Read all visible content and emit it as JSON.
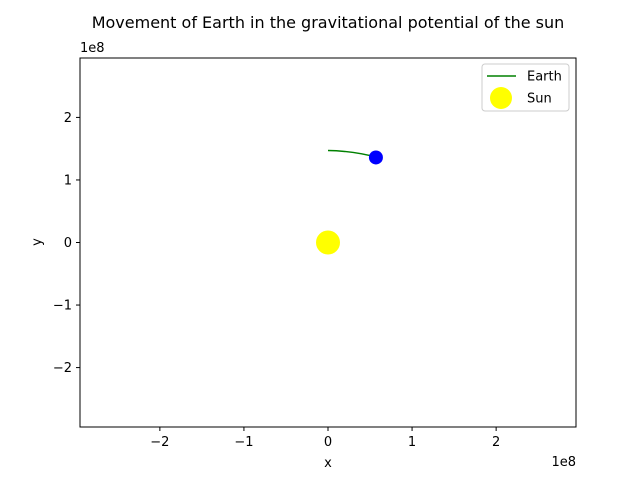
{
  "chart_data": {
    "type": "line",
    "title": "Movement of Earth in the gravitational potential of the sun",
    "xlabel": "x",
    "ylabel": "y",
    "x_offset_label": "1e8",
    "y_offset_label": "1e8",
    "xlim": [
      -2.95,
      2.95
    ],
    "ylim": [
      -2.95,
      2.95
    ],
    "xticks": [
      -2,
      -1,
      0,
      1,
      2
    ],
    "yticks": [
      -2,
      -1,
      0,
      1,
      2
    ],
    "xtick_labels": [
      "−2",
      "−1",
      "0",
      "1",
      "2"
    ],
    "ytick_labels": [
      "−2",
      "−1",
      "0",
      "1",
      "2"
    ],
    "grid": false,
    "legend_position": "top-right",
    "series": [
      {
        "name": "Earth",
        "kind": "line",
        "color": "#008000",
        "x": [
          0.0,
          0.1,
          0.2,
          0.3,
          0.4,
          0.5,
          0.57
        ],
        "y": [
          1.47,
          1.466,
          1.456,
          1.44,
          1.418,
          1.39,
          1.36
        ]
      },
      {
        "name": "Sun",
        "kind": "marker",
        "color": "#ffff00",
        "x": [
          0.0
        ],
        "y": [
          0.0
        ]
      }
    ],
    "earth_marker": {
      "x": 0.57,
      "y": 1.36,
      "color": "#0000ff"
    }
  }
}
